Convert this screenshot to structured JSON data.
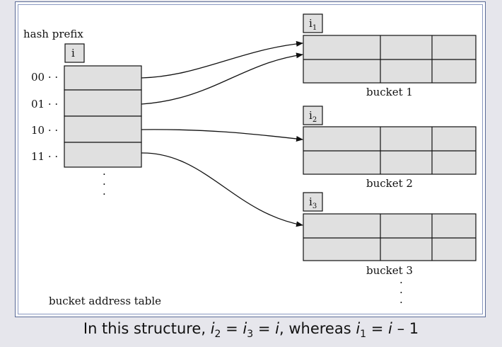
{
  "labels": {
    "hash_prefix": "hash prefix",
    "table_depth": "i",
    "bucket_address_table": "bucket address table",
    "vertical_ellipsis": "·"
  },
  "table_entries": [
    "00 · ·",
    "01 · ·",
    "10 · ·",
    "11 · ·"
  ],
  "buckets": [
    {
      "depth_base": "i",
      "depth_sub": "1",
      "name": "bucket 1"
    },
    {
      "depth_base": "i",
      "depth_sub": "2",
      "name": "bucket 2"
    },
    {
      "depth_base": "i",
      "depth_sub": "3",
      "name": "bucket 3"
    }
  ],
  "caption": {
    "prefix": "In this structure, ",
    "i2": "i",
    "i2_sub": "2",
    "eq1": " = ",
    "i3": "i",
    "i3_sub": "3",
    "eq2": " = ",
    "i": "i",
    "whereas": ", whereas ",
    "i1": "i",
    "i1_sub": "1",
    "eq3": " = ",
    "i_again": "i",
    "minus_one": " – 1"
  },
  "colors": {
    "cell_fill": "#e0e0e0",
    "stroke": "#111111",
    "frame_border": "#5a6a96",
    "background": "#e6e6ec"
  }
}
